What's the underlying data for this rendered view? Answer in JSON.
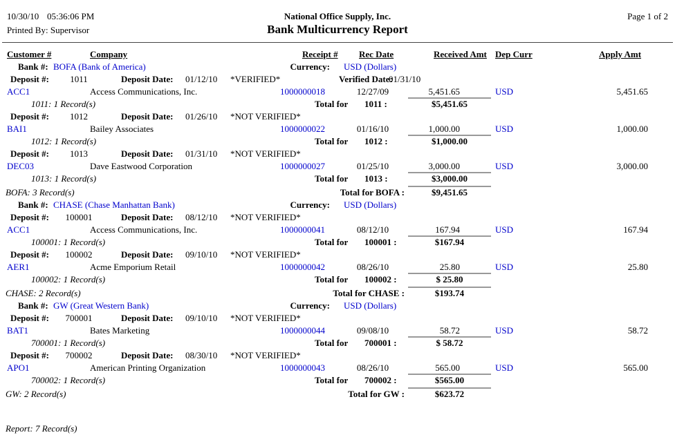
{
  "page": {
    "date": "10/30/10",
    "time": "05:36:06 PM",
    "printed_by": "Printed By: Supervisor",
    "company": "National Office Supply, Inc.",
    "title": "Bank Multicurrency Report",
    "page_info": "Page 1 of 2"
  },
  "columns": {
    "customer": "Customer #",
    "company": "Company",
    "receipt": "Receipt #",
    "rec_date": "Rec Date",
    "received_amt": "Received Amt",
    "dep_curr": "Dep Curr",
    "apply_amt": "Apply Amt"
  },
  "labels": {
    "bank": "Bank #:",
    "currency": "Currency:",
    "deposit": "Deposit #:",
    "deposit_date": "Deposit Date:",
    "verified_date": "Verified Date:",
    "total_for": "Total for"
  },
  "colors": {
    "link_blue": "#0000CC",
    "total_rule_gray": "#999999"
  },
  "banks": [
    {
      "bank": "BOFA (Bank of America)",
      "currency": "USD (Dollars)",
      "deposits": [
        {
          "number": "1011",
          "date": "01/12/10",
          "status": "*VERIFIED*",
          "verified_date": "01/31/10",
          "entries": [
            {
              "customer": "ACC1",
              "company": "Access Communications, Inc.",
              "receipt": "1000000018",
              "rec_date": "12/27/09",
              "received": "5,451.65",
              "curr": "USD",
              "apply": "5,451.65"
            }
          ],
          "records": "1011: 1 Record(s)",
          "total_num": "1011 :",
          "total": "$5,451.65"
        },
        {
          "number": "1012",
          "date": "01/26/10",
          "status": "*NOT VERIFIED*",
          "entries": [
            {
              "customer": "BAI1",
              "company": "Bailey Associates",
              "receipt": "1000000022",
              "rec_date": "01/16/10",
              "received": "1,000.00",
              "curr": "USD",
              "apply": "1,000.00"
            }
          ],
          "records": "1012: 1 Record(s)",
          "total_num": "1012 :",
          "total": "$1,000.00"
        },
        {
          "number": "1013",
          "date": "01/31/10",
          "status": "*NOT VERIFIED*",
          "entries": [
            {
              "customer": "DEC03",
              "company": "Dave Eastwood Corporation",
              "receipt": "1000000027",
              "rec_date": "01/25/10",
              "received": "3,000.00",
              "curr": "USD",
              "apply": "3,000.00"
            }
          ],
          "records": "1013: 1 Record(s)",
          "total_num": "1013 :",
          "total": "$3,000.00"
        }
      ],
      "records": "BOFA: 3 Record(s)",
      "total_label": "Total for BOFA :",
      "total": "$9,451.65"
    },
    {
      "bank": "CHASE (Chase Manhattan Bank)",
      "currency": "USD (Dollars)",
      "deposits": [
        {
          "number": "100001",
          "date": "08/12/10",
          "status": "*NOT VERIFIED*",
          "entries": [
            {
              "customer": "ACC1",
              "company": "Access Communications, Inc.",
              "receipt": "1000000041",
              "rec_date": "08/12/10",
              "received": "167.94",
              "curr": "USD",
              "apply": "167.94"
            }
          ],
          "records": "100001: 1 Record(s)",
          "total_num": "100001 :",
          "total": "$167.94"
        },
        {
          "number": "100002",
          "date": "09/10/10",
          "status": "*NOT VERIFIED*",
          "entries": [
            {
              "customer": "AER1",
              "company": "Acme Emporium Retail",
              "receipt": "1000000042",
              "rec_date": "08/26/10",
              "received": "25.80",
              "curr": "USD",
              "apply": "25.80"
            }
          ],
          "records": "100002: 1 Record(s)",
          "total_num": "100002 :",
          "total": "$ 25.80"
        }
      ],
      "records": "CHASE: 2 Record(s)",
      "total_label": "Total for CHASE :",
      "total": "$193.74"
    },
    {
      "bank": "GW (Great Western Bank)",
      "currency": "USD (Dollars)",
      "deposits": [
        {
          "number": "700001",
          "date": "09/10/10",
          "status": "*NOT VERIFIED*",
          "entries": [
            {
              "customer": "BAT1",
              "company": "Bates Marketing",
              "receipt": "1000000044",
              "rec_date": "09/08/10",
              "received": "58.72",
              "curr": "USD",
              "apply": "58.72"
            }
          ],
          "records": "700001: 1 Record(s)",
          "total_num": "700001 :",
          "total": "$ 58.72"
        },
        {
          "number": "700002",
          "date": "08/30/10",
          "status": "*NOT VERIFIED*",
          "entries": [
            {
              "customer": "APO1",
              "company": "American Printing Organization",
              "receipt": "1000000043",
              "rec_date": "08/26/10",
              "received": "565.00",
              "curr": "USD",
              "apply": "565.00"
            }
          ],
          "records": "700002: 1 Record(s)",
          "total_num": "700002 :",
          "total": "$565.00"
        }
      ],
      "records": "GW: 2 Record(s)",
      "total_label": "Total for GW :",
      "total": "$623.72"
    }
  ],
  "report_records": "Report: 7 Record(s)"
}
